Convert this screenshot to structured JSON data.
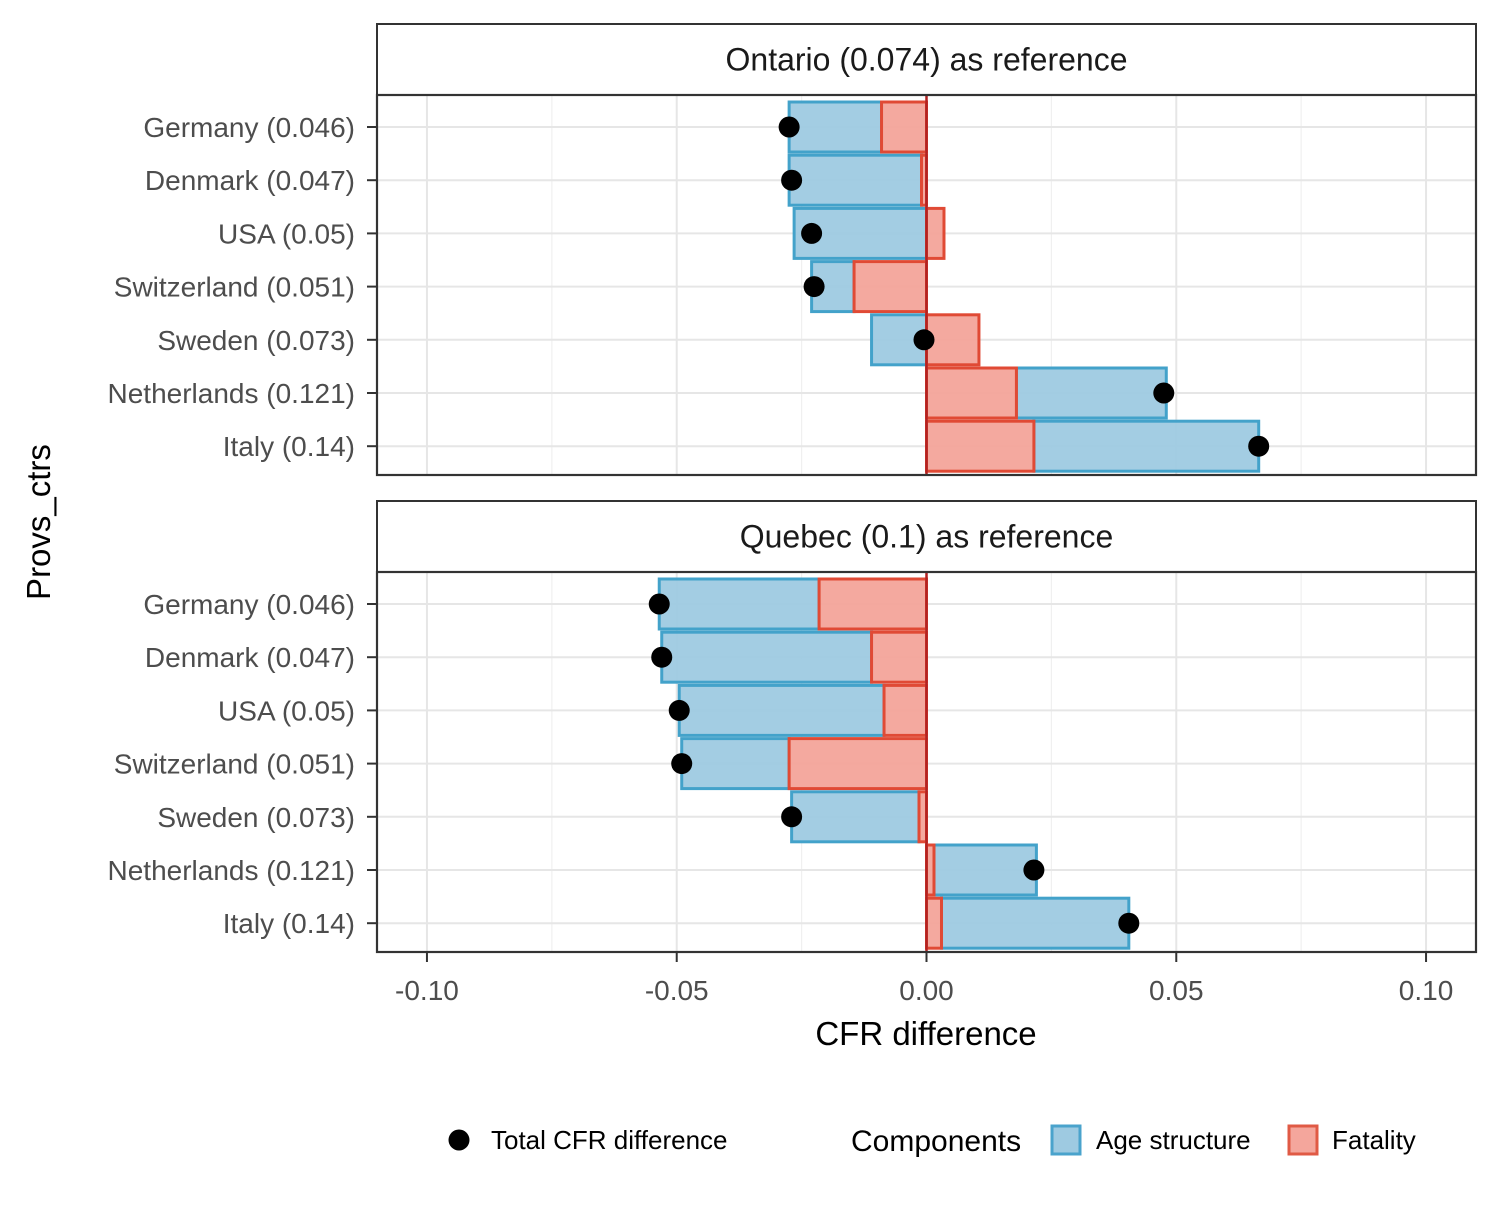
{
  "chart_data": {
    "type": "bar",
    "orientation": "horizontal",
    "stacked": true,
    "xlabel": "CFR difference",
    "ylabel": "Provs_ctrs",
    "xlim": [
      -0.11,
      0.11
    ],
    "xticks": [
      -0.1,
      -0.05,
      0.0,
      0.05,
      0.1
    ],
    "xtick_labels": [
      "-0.10",
      "-0.05",
      "0.00",
      "0.05",
      "0.10"
    ],
    "categories": [
      "Germany (0.046)",
      "Denmark (0.047)",
      "USA (0.05)",
      "Switzerland (0.051)",
      "Sweden (0.073)",
      "Netherlands (0.121)",
      "Italy (0.14)"
    ],
    "grid": true,
    "legend": {
      "position": "bottom",
      "point_label": "Total CFR difference",
      "fill_title": "Components",
      "items": [
        {
          "name": "Age structure",
          "color": "#9ecae1",
          "stroke": "#4aa3cc"
        },
        {
          "name": "Fatality",
          "color": "#f4a69c",
          "stroke": "#e05a45"
        }
      ]
    },
    "colors": {
      "age_fill": "#9ecae1",
      "age_stroke": "#43a2ca",
      "fatality_fill": "#f3a49a",
      "fatality_stroke": "#e04a35",
      "zero_line": "#b22222",
      "point": "#000000"
    },
    "panels": [
      {
        "strip": "Ontario (0.074) as reference",
        "series": [
          {
            "name": "Age structure",
            "values": [
              -0.0185,
              -0.0265,
              -0.0265,
              -0.0085,
              -0.011,
              0.03,
              0.045
            ]
          },
          {
            "name": "Fatality",
            "values": [
              -0.009,
              -0.001,
              0.0035,
              -0.0145,
              0.0105,
              0.018,
              0.0215
            ]
          },
          {
            "name": "Total CFR difference",
            "values": [
              -0.0275,
              -0.027,
              -0.023,
              -0.0225,
              -0.0005,
              0.0475,
              0.0665
            ]
          }
        ]
      },
      {
        "strip": "Quebec (0.1) as reference",
        "series": [
          {
            "name": "Age structure",
            "values": [
              -0.032,
              -0.042,
              -0.041,
              -0.0215,
              -0.0255,
              0.0205,
              0.0375
            ]
          },
          {
            "name": "Fatality",
            "values": [
              -0.0215,
              -0.011,
              -0.0085,
              -0.0275,
              -0.0015,
              0.0015,
              0.003
            ]
          },
          {
            "name": "Total CFR difference",
            "values": [
              -0.0535,
              -0.053,
              -0.0495,
              -0.049,
              -0.027,
              0.0215,
              0.0405
            ]
          }
        ]
      }
    ]
  }
}
